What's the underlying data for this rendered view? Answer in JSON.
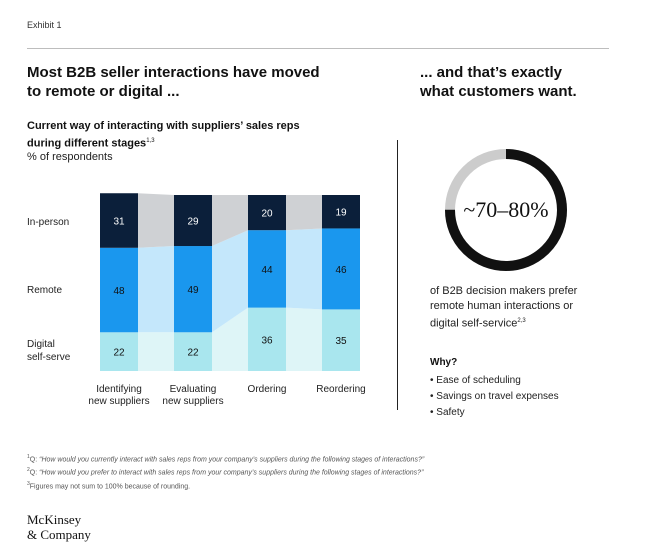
{
  "exhibit_label": "Exhibit 1",
  "headline_left_1": "Most B2B seller interactions have moved",
  "headline_left_2": "to remote or digital ...",
  "headline_right_1": "... and that’s exactly",
  "headline_right_2": "what customers want.",
  "chart_title_1": "Current way of interacting with suppliers’ sales reps",
  "chart_title_2": "during different stages",
  "chart_title_sup": "1,3",
  "chart_unit": "% of respondents",
  "row_labels": {
    "in_person": "In-person",
    "remote": "Remote",
    "digital_1": "Digital",
    "digital_2": "self-serve"
  },
  "colors": {
    "in_person": "#0b1f3a",
    "remote": "#1a97ee",
    "digital": "#a9e6ee",
    "flow_in_person": "#cfd1d4",
    "flow_remote": "#c4e7fb",
    "flow_digital": "#def5f7",
    "ring_dark": "#111111",
    "ring_light": "#cccccc"
  },
  "chart_data": {
    "type": "bar",
    "stacked": true,
    "title": "Current way of interacting with suppliers’ sales reps during different stages",
    "ylabel": "% of respondents",
    "categories": [
      [
        "Identifying",
        "new suppliers"
      ],
      [
        "Evaluating",
        "new suppliers"
      ],
      [
        "Ordering"
      ],
      [
        "Reordering"
      ]
    ],
    "series": [
      {
        "name": "Digital self-serve",
        "key": "digital",
        "values": [
          22,
          22,
          36,
          35
        ]
      },
      {
        "name": "Remote",
        "key": "remote",
        "values": [
          48,
          49,
          44,
          46
        ]
      },
      {
        "name": "In-person",
        "key": "in_person",
        "values": [
          31,
          29,
          20,
          19
        ]
      }
    ],
    "ylim": [
      0,
      100
    ]
  },
  "stat": {
    "value": "~70–80%",
    "ring_fraction": 0.75,
    "caption_1": "of B2B decision makers prefer",
    "caption_2": "remote human interactions or",
    "caption_3": "digital self-service",
    "caption_sup": "2,3"
  },
  "why": {
    "title": "Why?",
    "items": [
      "• Ease of scheduling",
      "• Savings on travel expenses",
      "• Safety"
    ]
  },
  "footnotes": {
    "f1_num": "1",
    "f1_prefix": "Q: ",
    "f1_text": "“How would you currently interact with sales reps from your company’s suppliers during the following stages of interactions?”",
    "f2_num": "2",
    "f2_prefix": "Q: ",
    "f2_text": "“How would you prefer to interact with sales reps from your company’s suppliers during the following stages of interactions?”",
    "f3_num": "3",
    "f3_text": "Figures may not sum to 100% because of rounding."
  },
  "logo_line_1": "McKinsey",
  "logo_line_2": "& Company"
}
